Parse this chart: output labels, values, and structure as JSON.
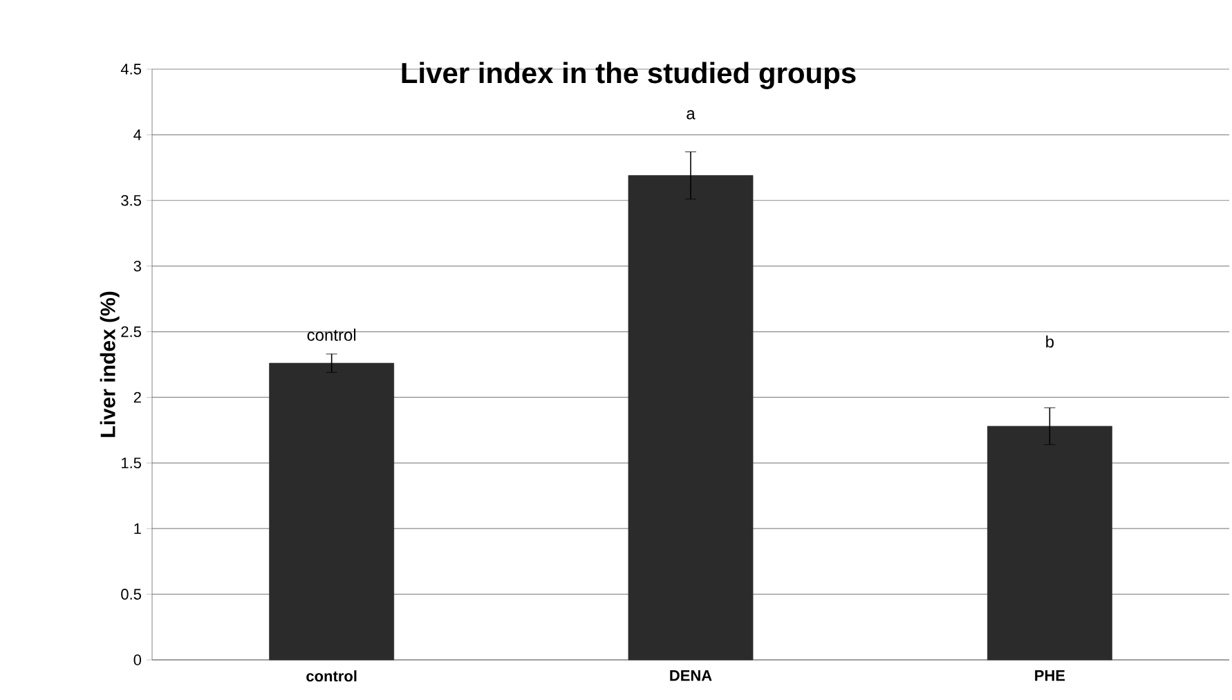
{
  "chart_data": {
    "type": "bar",
    "title": "Liver index in the studied groups",
    "ylabel": "Liver index (%)",
    "categories": [
      "control",
      "DENA",
      "PHE"
    ],
    "values": [
      2.26,
      3.69,
      1.78
    ],
    "errors": [
      0.07,
      0.18,
      0.14
    ],
    "color": "#2b2b2b",
    "ylim": [
      0,
      4.5
    ],
    "yticks": [
      0,
      0.5,
      1,
      1.5,
      2,
      2.5,
      3,
      3.5,
      4,
      4.5
    ],
    "grid": "y",
    "annotations": [
      "control",
      "a",
      "b"
    ]
  }
}
